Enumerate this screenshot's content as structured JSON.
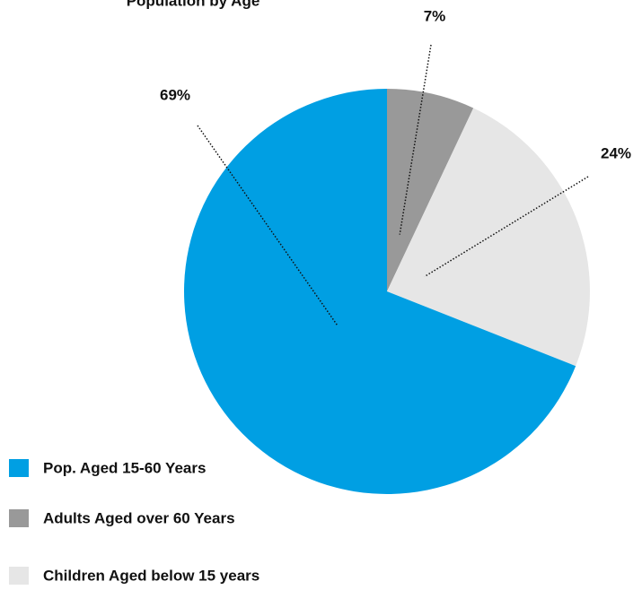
{
  "chart_data": {
    "type": "pie",
    "title": "Population by Age",
    "categories": [
      "Pop. Aged 15-60 Years",
      "Adults Aged over 60 Years",
      "Children Aged below 15 years"
    ],
    "values": [
      69,
      7,
      24
    ],
    "value_labels": [
      "69%",
      "7%",
      "24%"
    ],
    "colors": [
      "#009fe3",
      "#999999",
      "#e6e6e6"
    ],
    "legend": "bottom-left"
  }
}
